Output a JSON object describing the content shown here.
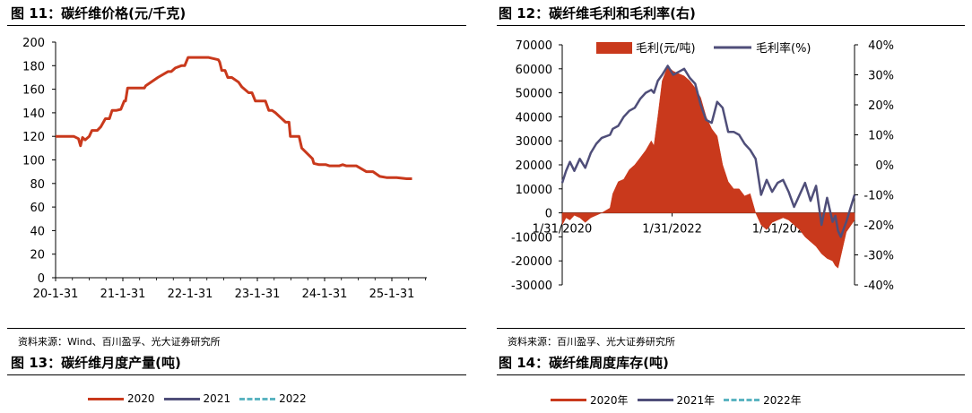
{
  "fig11": {
    "title": "图 11：碳纤维价格(元/千克)",
    "source": "资料来源：Wind、百川盈孚、光大证券研究所"
  },
  "fig12": {
    "title": "图 12：碳纤维毛利和毛利率(右)",
    "source": "资料来源：百川盈孚、光大证券研究所"
  },
  "fig13": {
    "title": "图 13：碳纤维月度产量(吨)",
    "legend": [
      "2020",
      "2021",
      "2022"
    ]
  },
  "fig14": {
    "title": "图 14：碳纤维周度库存(吨)",
    "legend": [
      "2020年",
      "2021年",
      "2022年"
    ]
  },
  "colors": {
    "red": "#C9391C",
    "navy": "#4F4E79",
    "teal": "#5BB4C1"
  },
  "chart_data": [
    {
      "id": "fig11",
      "type": "line",
      "ylim": [
        0,
        200
      ],
      "yticks": [
        "0",
        "20",
        "40",
        "60",
        "80",
        "100",
        "120",
        "140",
        "160",
        "180",
        "200"
      ],
      "xticks": [
        "20-1-31",
        "21-1-31",
        "22-1-31",
        "23-1-31",
        "24-1-31",
        "25-1-31"
      ],
      "series": [
        {
          "x": [
            2020.08,
            2020.2,
            2020.35,
            2020.42,
            2020.45,
            2020.48,
            2020.52,
            2020.58,
            2020.62,
            2020.7,
            2020.75,
            2020.82,
            2020.88,
            2020.92,
            2020.98,
            2021.05,
            2021.1,
            2021.12,
            2021.15,
            2021.3,
            2021.4,
            2021.42,
            2021.6,
            2021.75,
            2021.8,
            2021.86,
            2021.95,
            2022.0,
            2022.05,
            2022.35,
            2022.5,
            2022.52,
            2022.55,
            2022.6,
            2022.64,
            2022.7,
            2022.8,
            2022.85,
            2022.95,
            2023.0,
            2023.05,
            2023.1,
            2023.2,
            2023.25,
            2023.3,
            2023.35,
            2023.5,
            2023.55,
            2023.57,
            2023.7,
            2023.74,
            2023.9,
            2023.92,
            2024.0,
            2024.1,
            2024.15,
            2024.3,
            2024.35,
            2024.4,
            2024.55,
            2024.7,
            2024.8,
            2024.9,
            2025.0,
            2025.15,
            2025.3,
            2025.38
          ],
          "values": [
            120,
            120,
            120,
            118,
            112,
            119,
            117,
            120,
            125,
            125,
            128,
            135,
            135,
            142,
            142,
            143,
            150,
            150,
            161,
            161,
            161,
            163,
            170,
            175,
            175,
            178,
            180,
            180,
            187,
            187,
            185,
            183,
            176,
            176,
            170,
            170,
            166,
            162,
            157,
            157,
            150,
            150,
            150,
            142,
            142,
            140,
            132,
            132,
            120,
            120,
            110,
            101,
            97,
            96,
            96,
            95,
            95,
            96,
            95,
            95,
            90,
            90,
            86,
            85,
            85,
            84,
            84
          ]
        }
      ]
    },
    {
      "id": "fig12",
      "type": "area+line",
      "ylim": [
        -30000,
        70000
      ],
      "y2lim": [
        -0.4,
        0.4
      ],
      "yticks": [
        "-30000",
        "-20000",
        "-10000",
        "0",
        "10000",
        "20000",
        "30000",
        "40000",
        "50000",
        "60000",
        "70000"
      ],
      "y2ticks": [
        "-40%",
        "-30%",
        "-20%",
        "-10%",
        "0%",
        "10%",
        "20%",
        "30%",
        "40%"
      ],
      "xticks": [
        "1/31/2020",
        "1/31/2022",
        "1/31/2024"
      ],
      "series": [
        {
          "name": "毛利(元/吨)",
          "x": [
            2020.08,
            2020.15,
            2020.22,
            2020.3,
            2020.4,
            2020.5,
            2020.6,
            2020.7,
            2020.8,
            2020.95,
            2021.0,
            2021.1,
            2021.2,
            2021.3,
            2021.4,
            2021.5,
            2021.6,
            2021.7,
            2021.75,
            2021.82,
            2021.9,
            2022.0,
            2022.1,
            2022.2,
            2022.3,
            2022.4,
            2022.5,
            2022.6,
            2022.7,
            2022.8,
            2022.9,
            2023.0,
            2023.1,
            2023.2,
            2023.3,
            2023.4,
            2023.5,
            2023.6,
            2023.7,
            2023.8,
            2023.9,
            2024.0,
            2024.1,
            2024.2,
            2024.3,
            2024.4,
            2024.5,
            2024.6,
            2024.7,
            2024.8,
            2024.9,
            2025.0,
            2025.05,
            2025.1,
            2025.15,
            2025.25,
            2025.4
          ],
          "values": [
            -5000,
            -2000,
            -3000,
            -1000,
            -2000,
            -4000,
            -2000,
            -1000,
            0,
            2000,
            8000,
            13000,
            14000,
            18000,
            20000,
            23000,
            26000,
            30000,
            28000,
            40000,
            55000,
            61000,
            59000,
            58000,
            57000,
            55000,
            52000,
            48000,
            40000,
            35000,
            32000,
            20000,
            13000,
            10000,
            10000,
            7000,
            8000,
            0,
            -5000,
            -7000,
            -4000,
            -3000,
            -2000,
            -3000,
            -5000,
            -7000,
            -10000,
            -12000,
            -14000,
            -17000,
            -19000,
            -20000,
            -22000,
            -23000,
            -18000,
            -8000,
            -3000
          ]
        },
        {
          "name": "毛利率(%)",
          "x": [
            2020.08,
            2020.15,
            2020.22,
            2020.3,
            2020.4,
            2020.5,
            2020.6,
            2020.7,
            2020.8,
            2020.95,
            2021.0,
            2021.1,
            2021.2,
            2021.3,
            2021.4,
            2021.5,
            2021.6,
            2021.7,
            2021.75,
            2021.82,
            2021.9,
            2022.0,
            2022.1,
            2022.2,
            2022.3,
            2022.4,
            2022.5,
            2022.6,
            2022.7,
            2022.8,
            2022.9,
            2023.0,
            2023.1,
            2023.2,
            2023.3,
            2023.4,
            2023.5,
            2023.6,
            2023.7,
            2023.8,
            2023.9,
            2024.0,
            2024.1,
            2024.2,
            2024.3,
            2024.4,
            2024.5,
            2024.6,
            2024.7,
            2024.8,
            2024.9,
            2025.0,
            2025.05,
            2025.1,
            2025.15,
            2025.25,
            2025.4
          ],
          "values": [
            -0.06,
            -0.02,
            0.01,
            -0.02,
            0.02,
            -0.01,
            0.04,
            0.07,
            0.09,
            0.1,
            0.12,
            0.13,
            0.16,
            0.18,
            0.19,
            0.22,
            0.24,
            0.25,
            0.24,
            0.28,
            0.3,
            0.33,
            0.3,
            0.31,
            0.32,
            0.29,
            0.27,
            0.2,
            0.15,
            0.14,
            0.21,
            0.19,
            0.11,
            0.11,
            0.1,
            0.07,
            0.05,
            0.02,
            -0.1,
            -0.05,
            -0.09,
            -0.06,
            -0.05,
            -0.09,
            -0.14,
            -0.1,
            -0.06,
            -0.12,
            -0.07,
            -0.2,
            -0.11,
            -0.19,
            -0.17,
            -0.22,
            -0.24,
            -0.19,
            -0.1
          ]
        }
      ]
    }
  ]
}
